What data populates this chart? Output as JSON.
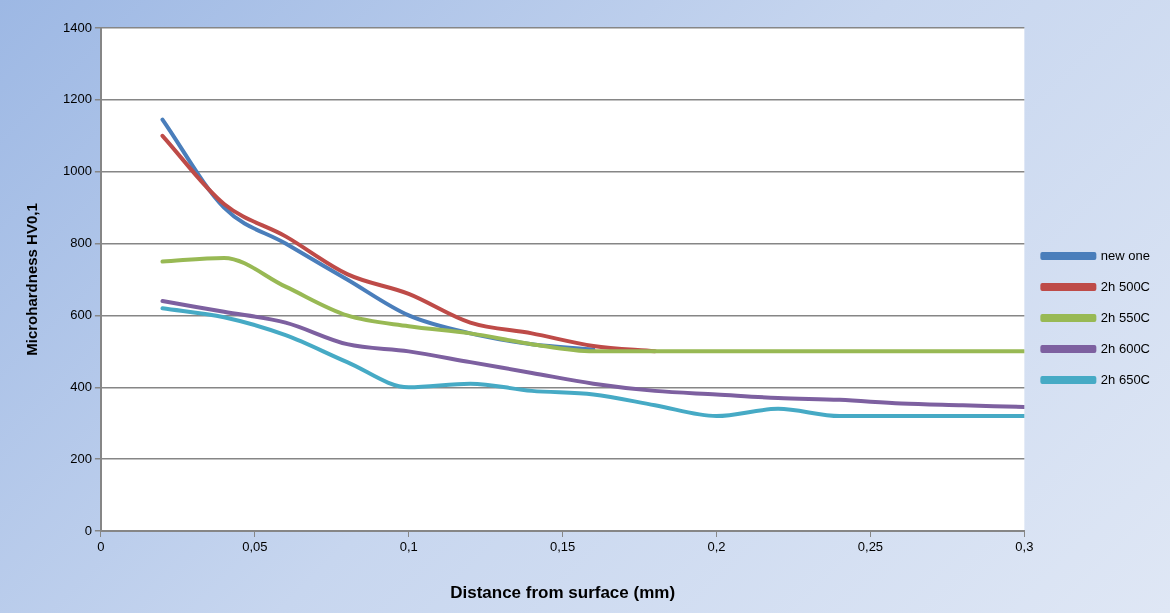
{
  "chart_data": {
    "type": "line",
    "xlabel": "Distance from surface (mm)",
    "ylabel": "Microhardness HV0,1",
    "x": [
      0.02,
      0.04,
      0.06,
      0.08,
      0.1,
      0.12,
      0.14,
      0.16,
      0.18,
      0.2,
      0.22,
      0.24,
      0.26,
      0.28,
      0.3
    ],
    "series": [
      {
        "name": "new one",
        "color": "#4a7ebb",
        "values": [
          1145,
          900,
          800,
          700,
          600,
          550,
          520,
          505,
          null,
          null,
          null,
          null,
          null,
          null,
          null
        ]
      },
      {
        "name": "2h 500C",
        "color": "#be4b48",
        "values": [
          1100,
          910,
          820,
          715,
          660,
          580,
          550,
          515,
          500,
          null,
          null,
          null,
          null,
          null,
          null
        ]
      },
      {
        "name": "2h 550C",
        "color": "#98b954",
        "values": [
          750,
          760,
          680,
          600,
          570,
          550,
          520,
          500,
          500,
          500,
          500,
          500,
          500,
          500,
          500
        ]
      },
      {
        "name": "2h 600C",
        "color": "#7d60a0",
        "values": [
          640,
          610,
          580,
          520,
          500,
          470,
          440,
          410,
          390,
          380,
          370,
          365,
          355,
          350,
          345
        ]
      },
      {
        "name": "2h 650C",
        "color": "#46aac5",
        "values": [
          620,
          595,
          545,
          470,
          400,
          410,
          390,
          380,
          350,
          320,
          340,
          320,
          320,
          320,
          320
        ]
      }
    ],
    "xlim": [
      0,
      0.3
    ],
    "xticks": [
      0,
      {
        "value": 0.05,
        "label": "0,05"
      },
      {
        "value": 0.1,
        "label": "0,1"
      },
      {
        "value": 0.15,
        "label": "0,15"
      },
      {
        "value": 0.2,
        "label": "0,2"
      },
      {
        "value": 0.25,
        "label": "0,25"
      },
      {
        "value": 0.3,
        "label": "0,3"
      }
    ],
    "ylim": [
      0,
      1400
    ],
    "yticks": [
      0,
      200,
      400,
      600,
      800,
      1000,
      1200,
      1400
    ],
    "grid": "y",
    "legend": "right",
    "marker": "none",
    "line_style": "solid"
  }
}
